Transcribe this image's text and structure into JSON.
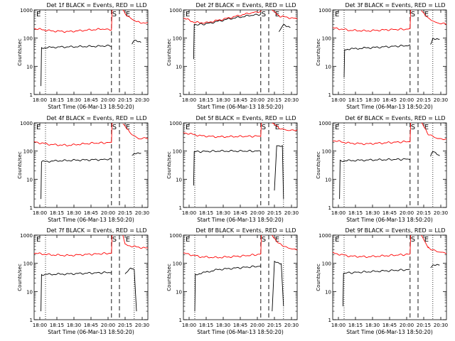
{
  "figure": {
    "panel_titles": [
      "Det 1f BLACK = Events, RED = LLD",
      "Det 2f BLACK = Events, RED = LLD",
      "Det 3f BLACK = Events, RED = LLD",
      "Det 4f BLACK = Events, RED = LLD",
      "Det 5f BLACK = Events, RED = LLD",
      "Det 6f BLACK = Events, RED = LLD",
      "Det 7f BLACK = Events, RED = LLD",
      "Det 8f BLACK = Events, RED = LLD",
      "Det 9f BLACK = Events, RED = LLD"
    ],
    "xlabel": "Start Time (06-Mar-13 18:50:20)",
    "ylabel": "Counts/sec",
    "x_tick_labels": [
      "18:00",
      "18:15",
      "18:30",
      "18:45",
      "20:00",
      "20:15",
      "20:30"
    ],
    "y_tick_labels": [
      "1",
      "10",
      "100",
      "1000"
    ],
    "markers": {
      "start": "E",
      "saa": "S",
      "end": "E"
    },
    "colors": {
      "events": "#000000",
      "lld": "#ff0000"
    }
  },
  "chart_data": [
    {
      "type": "line",
      "title": "Det 1f BLACK = Events, RED = LLD",
      "xlabel": "Start Time (06-Mar-13 18:50:20)",
      "ylabel": "Counts/sec",
      "yscale": "log",
      "ylim": [
        1,
        1000
      ],
      "series": [
        {
          "name": "Events",
          "color": "#000000",
          "segments": [
            [
              [
                0.06,
                2
              ],
              [
                0.065,
                45
              ],
              [
                0.2,
                48
              ],
              [
                0.4,
                50
              ],
              [
                0.6,
                52
              ],
              [
                0.68,
                55
              ]
            ],
            [
              [
                0.86,
                60
              ],
              [
                0.88,
                80
              ],
              [
                0.94,
                75
              ]
            ]
          ]
        },
        {
          "name": "LLD",
          "color": "#ff0000",
          "segments": [
            [
              [
                0.0,
                220
              ],
              [
                0.15,
                180
              ],
              [
                0.3,
                170
              ],
              [
                0.45,
                190
              ],
              [
                0.6,
                210
              ],
              [
                0.68,
                200
              ],
              [
                0.685,
                1000
              ]
            ],
            [
              [
                0.78,
                1000
              ],
              [
                0.82,
                600
              ],
              [
                0.9,
                380
              ],
              [
                1.0,
                330
              ]
            ]
          ]
        }
      ]
    },
    {
      "type": "line",
      "title": "Det 2f BLACK = Events, RED = LLD",
      "xlabel": "Start Time (06-Mar-13 18:50:20)",
      "ylabel": "Counts/sec",
      "yscale": "log",
      "ylim": [
        1,
        1000
      ],
      "series": [
        {
          "name": "Events",
          "color": "#000000",
          "segments": [
            [
              [
                0.09,
                18
              ],
              [
                0.095,
                300
              ],
              [
                0.2,
                320
              ],
              [
                0.4,
                480
              ],
              [
                0.6,
                650
              ],
              [
                0.68,
                700
              ]
            ],
            [
              [
                0.84,
                170
              ],
              [
                0.88,
                300
              ],
              [
                0.94,
                250
              ]
            ]
          ]
        },
        {
          "name": "LLD",
          "color": "#ff0000",
          "segments": [
            [
              [
                0.0,
                520
              ],
              [
                0.1,
                360
              ],
              [
                0.2,
                350
              ],
              [
                0.4,
                520
              ],
              [
                0.6,
                800
              ],
              [
                0.68,
                880
              ],
              [
                0.685,
                1000
              ]
            ],
            [
              [
                0.78,
                1000
              ],
              [
                0.85,
                600
              ],
              [
                1.0,
                480
              ]
            ]
          ]
        }
      ]
    },
    {
      "type": "line",
      "title": "Det 3f BLACK = Events, RED = LLD",
      "xlabel": "Start Time (06-Mar-13 18:50:20)",
      "ylabel": "Counts/sec",
      "yscale": "log",
      "ylim": [
        1,
        1000
      ],
      "series": [
        {
          "name": "Events",
          "color": "#000000",
          "segments": [
            [
              [
                0.1,
                4
              ],
              [
                0.105,
                40
              ],
              [
                0.3,
                45
              ],
              [
                0.5,
                50
              ],
              [
                0.68,
                55
              ]
            ],
            [
              [
                0.86,
                60
              ],
              [
                0.88,
                100
              ],
              [
                0.94,
                90
              ]
            ]
          ]
        },
        {
          "name": "LLD",
          "color": "#ff0000",
          "segments": [
            [
              [
                0.0,
                230
              ],
              [
                0.15,
                190
              ],
              [
                0.3,
                180
              ],
              [
                0.5,
                200
              ],
              [
                0.68,
                210
              ],
              [
                0.685,
                1000
              ]
            ],
            [
              [
                0.78,
                1000
              ],
              [
                0.84,
                500
              ],
              [
                0.92,
                340
              ],
              [
                1.0,
                320
              ]
            ]
          ]
        }
      ]
    },
    {
      "type": "line",
      "title": "Det 4f BLACK = Events, RED = LLD",
      "xlabel": "Start Time (06-Mar-13 18:50:20)",
      "ylabel": "Counts/sec",
      "yscale": "log",
      "ylim": [
        1,
        1000
      ],
      "series": [
        {
          "name": "Events",
          "color": "#000000",
          "segments": [
            [
              [
                0.06,
                2
              ],
              [
                0.065,
                42
              ],
              [
                0.2,
                45
              ],
              [
                0.4,
                48
              ],
              [
                0.6,
                50
              ],
              [
                0.68,
                52
              ]
            ],
            [
              [
                0.86,
                70
              ],
              [
                0.88,
                85
              ],
              [
                0.94,
                80
              ]
            ]
          ]
        },
        {
          "name": "LLD",
          "color": "#ff0000",
          "segments": [
            [
              [
                0.0,
                210
              ],
              [
                0.15,
                170
              ],
              [
                0.3,
                160
              ],
              [
                0.5,
                190
              ],
              [
                0.68,
                200
              ],
              [
                0.685,
                1000
              ]
            ],
            [
              [
                0.78,
                1000
              ],
              [
                0.84,
                450
              ],
              [
                0.92,
                270
              ],
              [
                1.0,
                300
              ]
            ]
          ]
        }
      ]
    },
    {
      "type": "line",
      "title": "Det 5f BLACK = Events, RED = LLD",
      "xlabel": "Start Time (06-Mar-13 18:50:20)",
      "ylabel": "Counts/sec",
      "yscale": "log",
      "ylim": [
        1,
        1000
      ],
      "series": [
        {
          "name": "Events",
          "color": "#000000",
          "segments": [
            [
              [
                0.09,
                6
              ],
              [
                0.095,
                95
              ],
              [
                0.3,
                100
              ],
              [
                0.5,
                100
              ],
              [
                0.68,
                100
              ]
            ],
            [
              [
                0.8,
                4
              ],
              [
                0.82,
                160
              ],
              [
                0.87,
                150
              ],
              [
                0.88,
                2
              ]
            ]
          ]
        },
        {
          "name": "LLD",
          "color": "#ff0000",
          "segments": [
            [
              [
                0.0,
                450
              ],
              [
                0.15,
                350
              ],
              [
                0.3,
                320
              ],
              [
                0.5,
                330
              ],
              [
                0.68,
                340
              ],
              [
                0.685,
                1000
              ]
            ],
            [
              [
                0.78,
                1000
              ],
              [
                0.84,
                650
              ],
              [
                0.92,
                540
              ],
              [
                1.0,
                560
              ]
            ]
          ]
        }
      ]
    },
    {
      "type": "line",
      "title": "Det 6f BLACK = Events, RED = LLD",
      "xlabel": "Start Time (06-Mar-13 18:50:20)",
      "ylabel": "Counts/sec",
      "yscale": "log",
      "ylim": [
        1,
        1000
      ],
      "series": [
        {
          "name": "Events",
          "color": "#000000",
          "segments": [
            [
              [
                0.06,
                2
              ],
              [
                0.065,
                45
              ],
              [
                0.3,
                48
              ],
              [
                0.5,
                50
              ],
              [
                0.68,
                52
              ]
            ],
            [
              [
                0.86,
                65
              ],
              [
                0.88,
                95
              ],
              [
                0.94,
                70
              ]
            ]
          ]
        },
        {
          "name": "LLD",
          "color": "#ff0000",
          "segments": [
            [
              [
                0.0,
                240
              ],
              [
                0.15,
                190
              ],
              [
                0.3,
                180
              ],
              [
                0.5,
                200
              ],
              [
                0.68,
                220
              ],
              [
                0.685,
                1000
              ]
            ],
            [
              [
                0.78,
                1000
              ],
              [
                0.84,
                400
              ],
              [
                0.92,
                280
              ],
              [
                1.0,
                260
              ]
            ]
          ]
        }
      ]
    },
    {
      "type": "line",
      "title": "Det 7f BLACK = Events, RED = LLD",
      "xlabel": "Start Time (06-Mar-13 18:50:20)",
      "ylabel": "Counts/sec",
      "yscale": "log",
      "ylim": [
        1,
        1000
      ],
      "series": [
        {
          "name": "Events",
          "color": "#000000",
          "segments": [
            [
              [
                0.06,
                2
              ],
              [
                0.065,
                40
              ],
              [
                0.3,
                42
              ],
              [
                0.5,
                45
              ],
              [
                0.68,
                48
              ]
            ],
            [
              [
                0.8,
                40
              ],
              [
                0.85,
                70
              ],
              [
                0.88,
                60
              ],
              [
                0.9,
                2
              ]
            ]
          ]
        },
        {
          "name": "LLD",
          "color": "#ff0000",
          "segments": [
            [
              [
                0.0,
                230
              ],
              [
                0.15,
                200
              ],
              [
                0.3,
                190
              ],
              [
                0.5,
                210
              ],
              [
                0.68,
                230
              ],
              [
                0.685,
                1000
              ]
            ],
            [
              [
                0.78,
                1000
              ],
              [
                0.8,
                450
              ],
              [
                0.9,
                380
              ],
              [
                1.0,
                340
              ]
            ]
          ]
        }
      ]
    },
    {
      "type": "line",
      "title": "Det 8f BLACK = Events, RED = LLD",
      "xlabel": "Start Time (06-Mar-13 18:50:20)",
      "ylabel": "Counts/sec",
      "yscale": "log",
      "ylim": [
        1,
        1000
      ],
      "series": [
        {
          "name": "Events",
          "color": "#000000",
          "segments": [
            [
              [
                0.1,
                2
              ],
              [
                0.105,
                40
              ],
              [
                0.3,
                60
              ],
              [
                0.5,
                70
              ],
              [
                0.68,
                80
              ]
            ],
            [
              [
                0.78,
                2
              ],
              [
                0.8,
                110
              ],
              [
                0.86,
                100
              ],
              [
                0.88,
                3
              ]
            ]
          ]
        },
        {
          "name": "LLD",
          "color": "#ff0000",
          "segments": [
            [
              [
                0.0,
                230
              ],
              [
                0.15,
                170
              ],
              [
                0.3,
                160
              ],
              [
                0.5,
                180
              ],
              [
                0.68,
                210
              ],
              [
                0.685,
                1000
              ]
            ],
            [
              [
                0.78,
                1000
              ],
              [
                0.84,
                500
              ],
              [
                0.92,
                350
              ],
              [
                1.0,
                300
              ]
            ]
          ]
        }
      ]
    },
    {
      "type": "line",
      "title": "Det 9f BLACK = Events, RED = LLD",
      "xlabel": "Start Time (06-Mar-13 18:50:20)",
      "ylabel": "Counts/sec",
      "yscale": "log",
      "ylim": [
        1,
        1000
      ],
      "series": [
        {
          "name": "Events",
          "color": "#000000",
          "segments": [
            [
              [
                0.09,
                3
              ],
              [
                0.095,
                45
              ],
              [
                0.3,
                50
              ],
              [
                0.5,
                55
              ],
              [
                0.68,
                60
              ]
            ],
            [
              [
                0.86,
                70
              ],
              [
                0.88,
                90
              ],
              [
                0.94,
                85
              ]
            ]
          ]
        },
        {
          "name": "LLD",
          "color": "#ff0000",
          "segments": [
            [
              [
                0.0,
                230
              ],
              [
                0.15,
                180
              ],
              [
                0.3,
                170
              ],
              [
                0.5,
                190
              ],
              [
                0.68,
                210
              ],
              [
                0.685,
                1000
              ]
            ],
            [
              [
                0.78,
                1000
              ],
              [
                0.84,
                350
              ],
              [
                0.92,
                260
              ],
              [
                1.0,
                230
              ]
            ]
          ]
        }
      ]
    }
  ]
}
